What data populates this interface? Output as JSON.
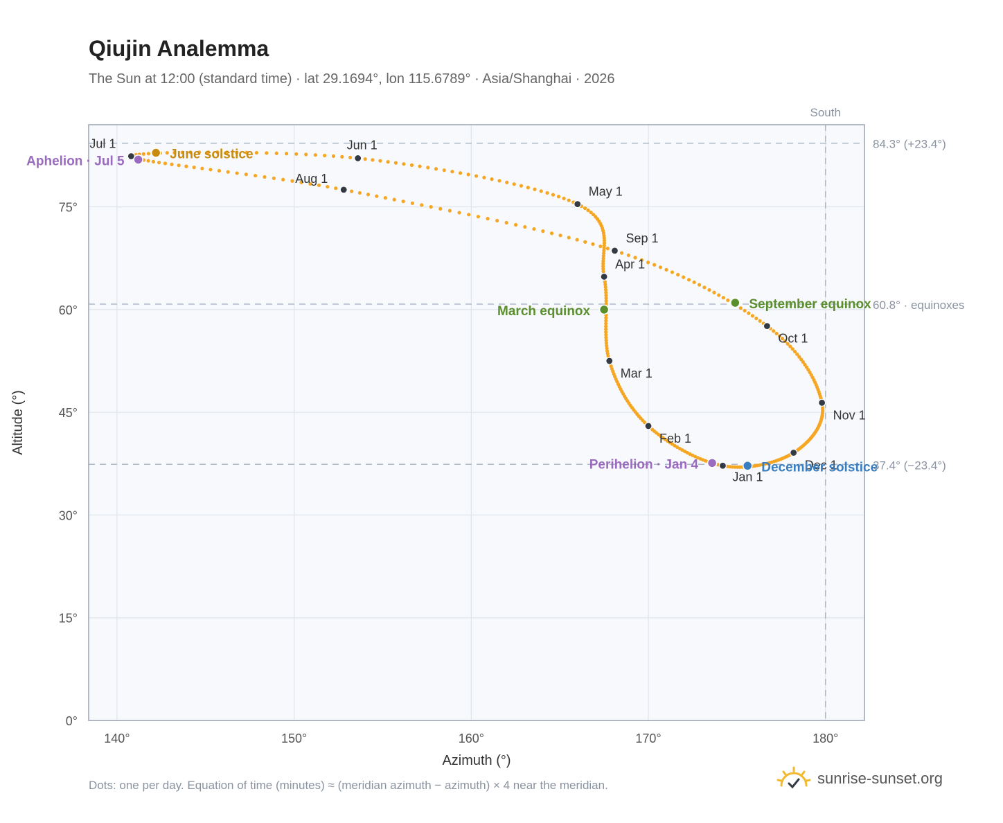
{
  "title": "Qiujin Analemma",
  "subtitle": "The Sun at 12:00 (standard time) · lat 29.1694°, lon 115.6789° · Asia/Shanghai · 2026",
  "footnote": "Dots: one per day. Equation of time (minutes) ≈ (meridian azimuth − azimuth) × 4 near the meridian.",
  "brand": "sunrise-sunset.org",
  "colors": {
    "curve": "#f5a623",
    "month_dot": "#333a44",
    "equinox": "#5b8f2e",
    "june_solstice": "#c98a10",
    "december_solstice": "#3a7ec2",
    "apsis": "#9a6bbf",
    "plot_bg": "#f7f9fc",
    "grid": "#dfe5ec",
    "frame": "#9aa3b0",
    "reference_line": "#aeb9c6"
  },
  "chart_data": {
    "type": "scatter",
    "title": "Qiujin Analemma",
    "xlabel": "Azimuth (°)",
    "ylabel": "Altitude (°)",
    "xlim": [
      138.4,
      182.2
    ],
    "ylim": [
      0,
      87
    ],
    "x_ticks": [
      140,
      150,
      160,
      170,
      180
    ],
    "x_tick_labels": [
      "140°",
      "150°",
      "160°",
      "170°",
      "180°"
    ],
    "y_ticks": [
      0,
      15,
      30,
      45,
      60,
      75
    ],
    "y_tick_labels": [
      "0°",
      "15°",
      "30°",
      "45°",
      "60°",
      "75°"
    ],
    "grid": true,
    "reference_lines": {
      "horizontal": [
        {
          "y": 84.3,
          "label": "84.3° (+23.4°)"
        },
        {
          "y": 60.8,
          "label": "60.8° · equinoxes"
        },
        {
          "y": 37.4,
          "label": "37.4° (−23.4°)"
        }
      ],
      "vertical": {
        "x": 180,
        "label": "South"
      }
    },
    "month_points": [
      {
        "label": "Jan 1",
        "x": 174.2,
        "y": 37.2
      },
      {
        "label": "Feb 1",
        "x": 170.0,
        "y": 43.0
      },
      {
        "label": "Mar 1",
        "x": 167.8,
        "y": 52.5
      },
      {
        "label": "Apr 1",
        "x": 167.5,
        "y": 64.8
      },
      {
        "label": "May 1",
        "x": 166.0,
        "y": 75.4
      },
      {
        "label": "Jun 1",
        "x": 153.6,
        "y": 82.1
      },
      {
        "label": "Jul 1",
        "x": 140.8,
        "y": 82.4
      },
      {
        "label": "Aug 1",
        "x": 152.8,
        "y": 77.5
      },
      {
        "label": "Sep 1",
        "x": 168.1,
        "y": 68.6
      },
      {
        "label": "Oct 1",
        "x": 176.7,
        "y": 57.6
      },
      {
        "label": "Nov 1",
        "x": 179.8,
        "y": 46.4
      },
      {
        "label": "Dec 1",
        "x": 178.2,
        "y": 39.1
      }
    ],
    "events": [
      {
        "label": "June solstice",
        "x": 142.2,
        "y": 82.9,
        "color_key": "june_solstice"
      },
      {
        "label": "Aphelion · Jul 5",
        "x": 141.2,
        "y": 81.9,
        "color_key": "apsis"
      },
      {
        "label": "March equinox",
        "x": 167.5,
        "y": 60.0,
        "color_key": "equinox"
      },
      {
        "label": "September equinox",
        "x": 174.9,
        "y": 61.0,
        "color_key": "equinox"
      },
      {
        "label": "Perihelion · Jan 4",
        "x": 173.6,
        "y": 37.6,
        "color_key": "apsis"
      },
      {
        "label": "December solstice",
        "x": 175.6,
        "y": 37.2,
        "color_key": "december_solstice"
      }
    ]
  }
}
